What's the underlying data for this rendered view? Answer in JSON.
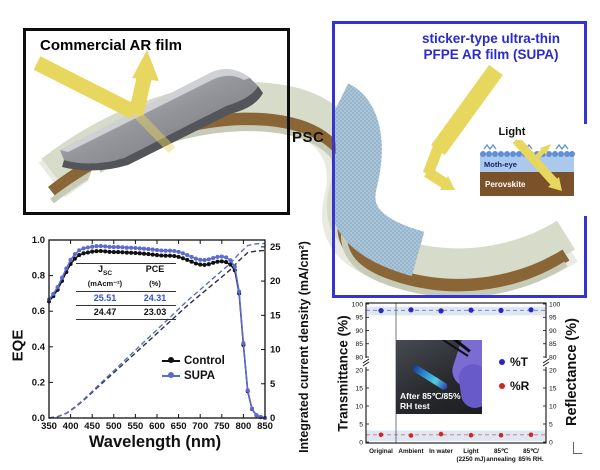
{
  "illustration": {
    "commercial_box": {
      "label": "Commercial AR film",
      "border_color": "#0d0d0d"
    },
    "supa_box": {
      "label_line1": "sticker-type ultra-thin",
      "label_line2": "PFPE AR film (SUPA)",
      "border_color": "#3434d2",
      "text_color": "#2a2ace"
    },
    "psc_label": "PSC",
    "moth_eye_inset": {
      "light_label": "Light",
      "moth_eye_label": "Moth-eye",
      "perovskite_label": "Perovskite",
      "moth_eye_layer_color": "#aac9ec",
      "moth_eye_bump_color": "#5f8fd8",
      "perovskite_color": "#7a5128"
    },
    "arrow_color": "#e8d75f",
    "substrate_top_color": "#d7dbc9",
    "substrate_bottom_color": "#8a6536",
    "commercial_film_color": "#94959a",
    "supa_film_color": "#abc4d7"
  },
  "chart_data": [
    {
      "type": "line",
      "xlabel": "Wavelength (nm)",
      "ylabel_left": "EQE",
      "ylabel_right": "Integrated current density (mA/cm²)",
      "xlim": [
        350,
        850
      ],
      "ylim_left": [
        0,
        1.0
      ],
      "ylim_right": [
        0,
        26
      ],
      "x_ticks": [
        350,
        400,
        450,
        500,
        550,
        600,
        650,
        700,
        750,
        800,
        850
      ],
      "y_ticks_left": [
        "0.0",
        "0.2",
        "0.4",
        "0.6",
        "0.8",
        "1.0"
      ],
      "y_ticks_right": [
        0,
        5,
        10,
        15,
        20,
        25
      ],
      "series": [
        {
          "name": "Control",
          "color": "#111111",
          "style": "solid",
          "markers": true,
          "axis": "left",
          "x": [
            350,
            360,
            370,
            380,
            390,
            400,
            410,
            420,
            430,
            440,
            450,
            460,
            470,
            480,
            490,
            500,
            510,
            520,
            530,
            540,
            550,
            560,
            570,
            580,
            590,
            600,
            610,
            620,
            630,
            640,
            650,
            660,
            670,
            680,
            690,
            700,
            710,
            720,
            730,
            740,
            750,
            760,
            770,
            780,
            790,
            800,
            810,
            820,
            830,
            840,
            850
          ],
          "y": [
            0.655,
            0.685,
            0.72,
            0.77,
            0.82,
            0.865,
            0.895,
            0.915,
            0.925,
            0.93,
            0.935,
            0.937,
            0.938,
            0.936,
            0.933,
            0.932,
            0.932,
            0.931,
            0.929,
            0.928,
            0.927,
            0.925,
            0.923,
            0.921,
            0.918,
            0.915,
            0.913,
            0.912,
            0.912,
            0.91,
            0.905,
            0.897,
            0.888,
            0.878,
            0.868,
            0.862,
            0.86,
            0.864,
            0.872,
            0.878,
            0.88,
            0.876,
            0.862,
            0.83,
            0.7,
            0.41,
            0.15,
            0.05,
            0.015,
            0.005,
            0.0
          ]
        },
        {
          "name": "SUPA",
          "color": "#5b6bd0",
          "style": "solid",
          "markers": true,
          "axis": "left",
          "x": [
            350,
            360,
            370,
            380,
            390,
            400,
            410,
            420,
            430,
            440,
            450,
            460,
            470,
            480,
            490,
            500,
            510,
            520,
            530,
            540,
            550,
            560,
            570,
            580,
            590,
            600,
            610,
            620,
            630,
            640,
            650,
            660,
            670,
            680,
            690,
            700,
            710,
            720,
            730,
            740,
            750,
            760,
            770,
            780,
            790,
            800,
            810,
            820,
            830,
            840,
            850
          ],
          "y": [
            0.665,
            0.697,
            0.735,
            0.788,
            0.84,
            0.888,
            0.92,
            0.942,
            0.953,
            0.958,
            0.962,
            0.965,
            0.966,
            0.964,
            0.961,
            0.96,
            0.96,
            0.959,
            0.957,
            0.956,
            0.955,
            0.953,
            0.951,
            0.949,
            0.946,
            0.943,
            0.941,
            0.94,
            0.94,
            0.938,
            0.933,
            0.925,
            0.915,
            0.905,
            0.895,
            0.889,
            0.887,
            0.891,
            0.899,
            0.905,
            0.907,
            0.902,
            0.886,
            0.85,
            0.71,
            0.42,
            0.155,
            0.052,
            0.016,
            0.005,
            0.0
          ]
        },
        {
          "name": "Control integrated Jsc",
          "color": "#30303c",
          "style": "dashed",
          "markers": false,
          "axis": "right",
          "x": [
            350,
            370,
            390,
            410,
            430,
            450,
            470,
            490,
            510,
            530,
            550,
            570,
            590,
            610,
            630,
            650,
            670,
            690,
            710,
            730,
            750,
            770,
            790,
            810,
            830,
            850
          ],
          "y": [
            0,
            0.19,
            0.67,
            1.53,
            2.59,
            3.74,
            4.89,
            6.04,
            7.19,
            8.34,
            9.49,
            10.64,
            11.79,
            12.94,
            14.1,
            15.25,
            16.4,
            17.45,
            18.5,
            19.56,
            20.6,
            21.66,
            23.0,
            24.16,
            24.4,
            24.47
          ]
        },
        {
          "name": "SUPA integrated Jsc",
          "color": "#5b6bd0",
          "style": "dashed",
          "markers": false,
          "axis": "right",
          "x": [
            350,
            370,
            390,
            410,
            430,
            450,
            470,
            490,
            510,
            530,
            550,
            570,
            590,
            610,
            630,
            650,
            670,
            690,
            710,
            730,
            750,
            770,
            790,
            810,
            830,
            850
          ],
          "y": [
            0,
            0.2,
            0.7,
            1.6,
            2.7,
            3.9,
            5.1,
            6.3,
            7.5,
            8.7,
            9.9,
            11.1,
            12.3,
            13.5,
            14.7,
            15.9,
            17.1,
            18.2,
            19.3,
            20.4,
            21.5,
            22.6,
            24.0,
            25.2,
            25.45,
            25.51
          ]
        }
      ],
      "legend": [
        {
          "label": "Control",
          "color": "#111111"
        },
        {
          "label": "SUPA",
          "color": "#5b6bd0"
        }
      ],
      "inset_table": {
        "header": {
          "jsc_main": "J",
          "jsc_sub": "SC",
          "pce": "PCE"
        },
        "units_jsc": "(mAcm⁻²)",
        "units_pce": "(%)",
        "rows": [
          {
            "jsc": "25.51",
            "pce": "24.31",
            "color": "#3a4fd0"
          },
          {
            "jsc": "24.47",
            "pce": "23.03",
            "color": "#111111"
          }
        ]
      }
    },
    {
      "type": "scatter",
      "ylabel_left": "Transmittance (%)",
      "ylabel_right": "Reflectance (%)",
      "axis_break": true,
      "y_ticks": [
        0,
        5,
        10,
        15,
        20,
        80,
        85,
        90,
        95,
        100
      ],
      "ylim_segments": [
        [
          0,
          22
        ],
        [
          78,
          100
        ]
      ],
      "categories": [
        [
          "Original",
          ""
        ],
        [
          "Ambient",
          ""
        ],
        [
          "In water",
          ""
        ],
        [
          "Light",
          "(2250 mJ)"
        ],
        [
          "85℃",
          "annealing"
        ],
        [
          "85℃/",
          "85% RH."
        ]
      ],
      "series": [
        {
          "name": "%T",
          "color": "#2626c9",
          "values": [
            97.5,
            97.8,
            97.4,
            97.7,
            97.6,
            97.8
          ]
        },
        {
          "name": "%R",
          "color": "#d42525",
          "values": [
            2.0,
            1.8,
            2.2,
            1.9,
            1.9,
            2.0
          ]
        }
      ],
      "reference_lines": [
        {
          "value": 97.6,
          "color": "#5566cc"
        },
        {
          "value": 2.0,
          "color": "#d46060"
        }
      ],
      "bands": [
        {
          "from": 95.7,
          "to": 99.0
        },
        {
          "from": 0.3,
          "to": 3.2
        }
      ],
      "band_color": "#dfe7f3",
      "legend": [
        {
          "label": "%T",
          "color": "#2626c9"
        },
        {
          "label": "%R",
          "color": "#d42525"
        }
      ],
      "inset_photo": {
        "caption_line1": "After 85℃/85%",
        "caption_line2": "RH test"
      }
    }
  ]
}
